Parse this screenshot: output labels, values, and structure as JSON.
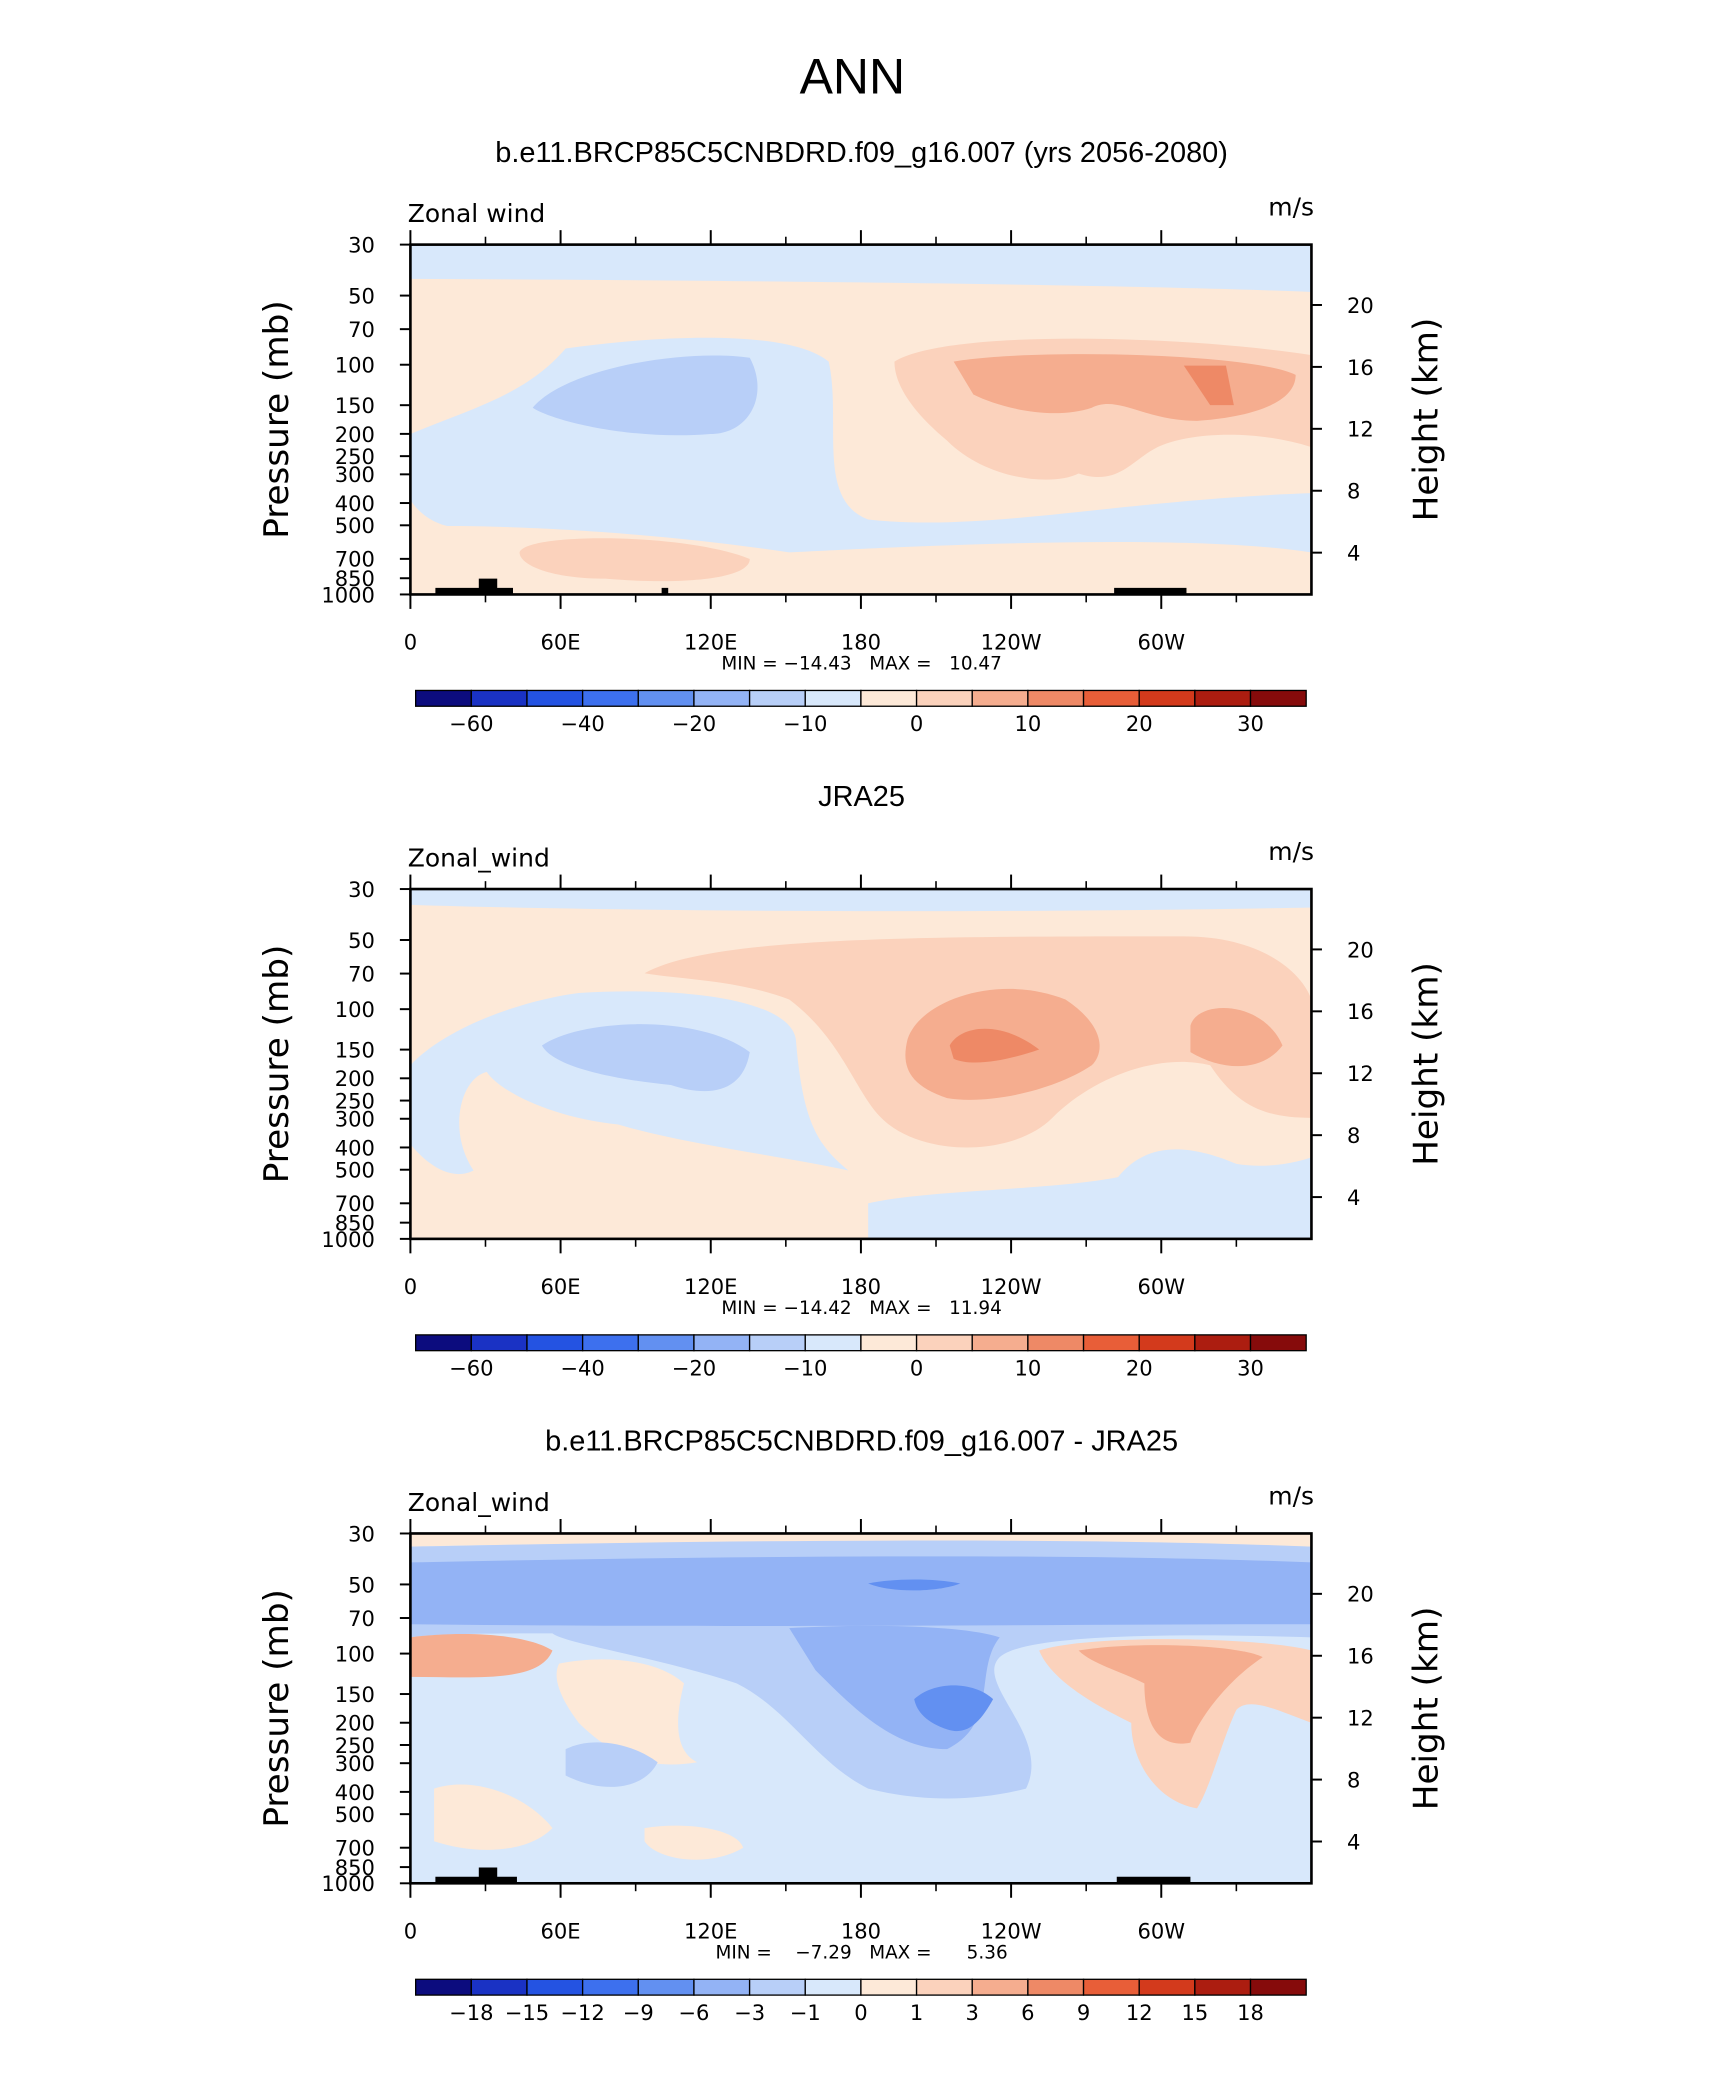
{
  "title": "ANN",
  "chart_data": [
    {
      "type": "contour",
      "title": "b.e11.BRCP85C5CNBDRD.f09_g16.007 (yrs 2056-2080)",
      "left_label": "Zonal wind",
      "units": "m/s",
      "stats": "MIN = −14.43   MAX =   10.47",
      "ylabel": "Pressure (mb)",
      "y2label": "Height (km)",
      "log_scale": true,
      "ylim": [
        1000,
        30
      ],
      "yticks": [
        30,
        50,
        70,
        100,
        150,
        200,
        250,
        300,
        400,
        500,
        700,
        850,
        1000
      ],
      "y2lim": [
        1.3,
        23.9
      ],
      "y2ticks": [
        4,
        8,
        12,
        16,
        20
      ],
      "xlim": [
        0,
        360
      ],
      "xticks": [
        0,
        {
          "value": 60,
          "label": "60E"
        },
        {
          "value": 120,
          "label": "120E"
        },
        180,
        {
          "value": 240,
          "label": "120W"
        },
        {
          "value": 300,
          "label": "60W"
        }
      ],
      "colorbar": {
        "colors": [
          "#0c0c7e",
          "#1a32c4",
          "#2453e2",
          "#3d70ee",
          "#6290f1",
          "#93b3f5",
          "#b8cff8",
          "#d8e8fb",
          "#fde9d8",
          "#fbd2bc",
          "#f5ad8f",
          "#ee8966",
          "#e85e38",
          "#d33a1c",
          "#ac1d10",
          "#860b0b"
        ],
        "labels": [
          {
            "value": -60,
            "label": "−60"
          },
          null,
          {
            "value": -40,
            "label": "−40"
          },
          null,
          {
            "value": -20,
            "label": "−20"
          },
          null,
          {
            "value": -10,
            "label": "−10"
          },
          null,
          0,
          null,
          10,
          null,
          20,
          null,
          30
        ]
      }
    },
    {
      "type": "contour",
      "title": "JRA25",
      "left_label": "Zonal_wind",
      "units": "m/s",
      "stats": "MIN = −14.42   MAX =   11.94",
      "ylabel": "Pressure (mb)",
      "y2label": "Height (km)",
      "log_scale": true,
      "ylim": [
        1000,
        30
      ],
      "yticks": [
        30,
        50,
        70,
        100,
        150,
        200,
        250,
        300,
        400,
        500,
        700,
        850,
        1000
      ],
      "y2lim": [
        1.3,
        23.9
      ],
      "y2ticks": [
        4,
        8,
        12,
        16,
        20
      ],
      "xlim": [
        0,
        360
      ],
      "xticks": [
        0,
        {
          "value": 60,
          "label": "60E"
        },
        {
          "value": 120,
          "label": "120E"
        },
        180,
        {
          "value": 240,
          "label": "120W"
        },
        {
          "value": 300,
          "label": "60W"
        }
      ],
      "colorbar": {
        "colors": [
          "#0c0c7e",
          "#1a32c4",
          "#2453e2",
          "#3d70ee",
          "#6290f1",
          "#93b3f5",
          "#b8cff8",
          "#d8e8fb",
          "#fde9d8",
          "#fbd2bc",
          "#f5ad8f",
          "#ee8966",
          "#e85e38",
          "#d33a1c",
          "#ac1d10",
          "#860b0b"
        ],
        "labels": [
          {
            "value": -60,
            "label": "−60"
          },
          null,
          {
            "value": -40,
            "label": "−40"
          },
          null,
          {
            "value": -20,
            "label": "−20"
          },
          null,
          {
            "value": -10,
            "label": "−10"
          },
          null,
          0,
          null,
          10,
          null,
          20,
          null,
          30
        ]
      }
    },
    {
      "type": "contour",
      "title": "b.e11.BRCP85C5CNBDRD.f09_g16.007 - JRA25",
      "left_label": "Zonal_wind",
      "units": "m/s",
      "stats": "MIN =    −7.29   MAX =      5.36",
      "ylabel": "Pressure (mb)",
      "y2label": "Height (km)",
      "log_scale": true,
      "ylim": [
        1000,
        30
      ],
      "yticks": [
        30,
        50,
        70,
        100,
        150,
        200,
        250,
        300,
        400,
        500,
        700,
        850,
        1000
      ],
      "y2lim": [
        1.3,
        23.9
      ],
      "y2ticks": [
        4,
        8,
        12,
        16,
        20
      ],
      "xlim": [
        0,
        360
      ],
      "xticks": [
        0,
        {
          "value": 60,
          "label": "60E"
        },
        {
          "value": 120,
          "label": "120E"
        },
        180,
        {
          "value": 240,
          "label": "120W"
        },
        {
          "value": 300,
          "label": "60W"
        }
      ],
      "colorbar": {
        "colors": [
          "#0c0c7e",
          "#1a32c4",
          "#2453e2",
          "#3d70ee",
          "#6290f1",
          "#93b3f5",
          "#b8cff8",
          "#d8e8fb",
          "#fde9d8",
          "#fbd2bc",
          "#f5ad8f",
          "#ee8966",
          "#e85e38",
          "#d33a1c",
          "#ac1d10",
          "#860b0b"
        ],
        "labels": [
          {
            "value": -18,
            "label": "−18"
          },
          {
            "value": -15,
            "label": "−15"
          },
          {
            "value": -12,
            "label": "−12"
          },
          {
            "value": -9,
            "label": "−9"
          },
          {
            "value": -6,
            "label": "−6"
          },
          {
            "value": -3,
            "label": "−3"
          },
          {
            "value": -1,
            "label": "−1"
          },
          0,
          1,
          3,
          6,
          9,
          12,
          15,
          18
        ]
      }
    }
  ]
}
